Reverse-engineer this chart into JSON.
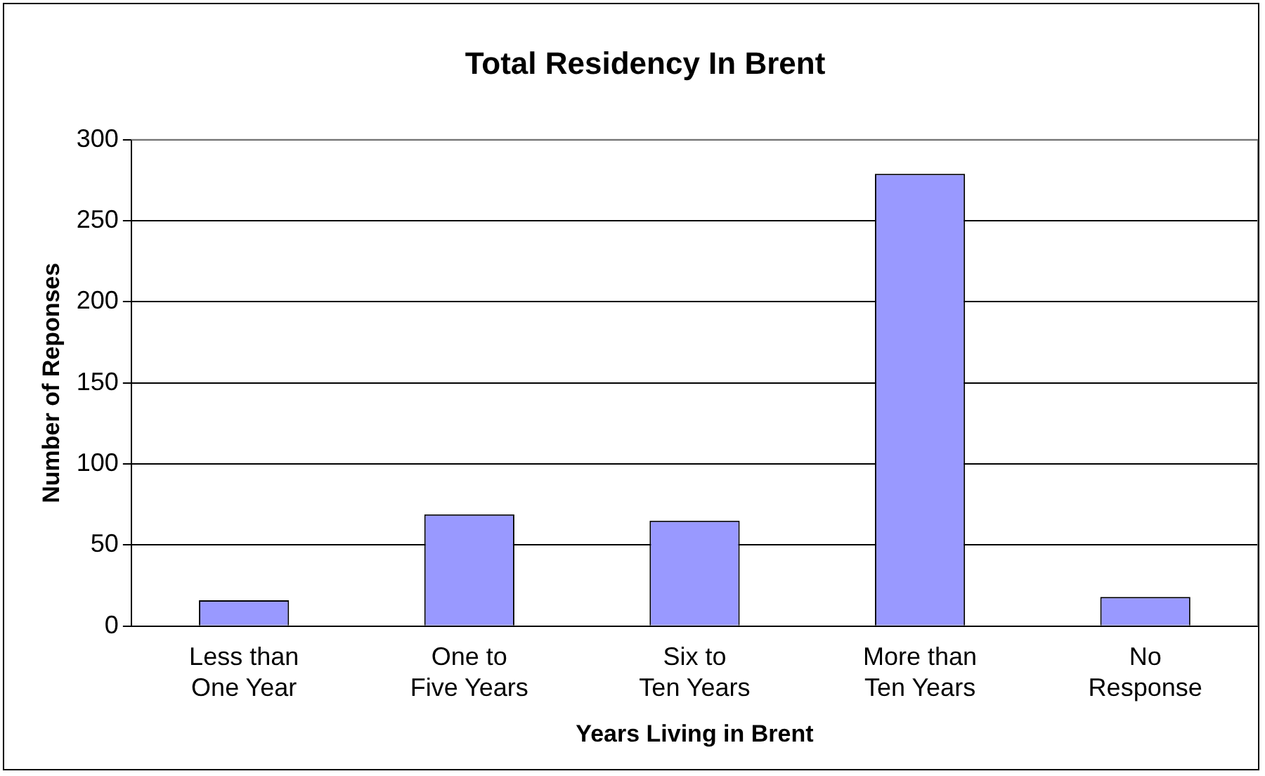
{
  "chart_data": {
    "type": "bar",
    "title": "Total Residency In Brent",
    "xlabel": "Years Living in Brent",
    "ylabel": "Number of Reponses",
    "categories": [
      "Less than One Year",
      "One to Five Years",
      "Six to Ten Years",
      "More than Ten Years",
      "No Response"
    ],
    "values": [
      16,
      69,
      65,
      279,
      18
    ],
    "color": "#9999ff",
    "ylim": [
      0,
      300
    ],
    "yticks": [
      0,
      50,
      100,
      150,
      200,
      250,
      300
    ],
    "grid": "y",
    "legend": false
  }
}
